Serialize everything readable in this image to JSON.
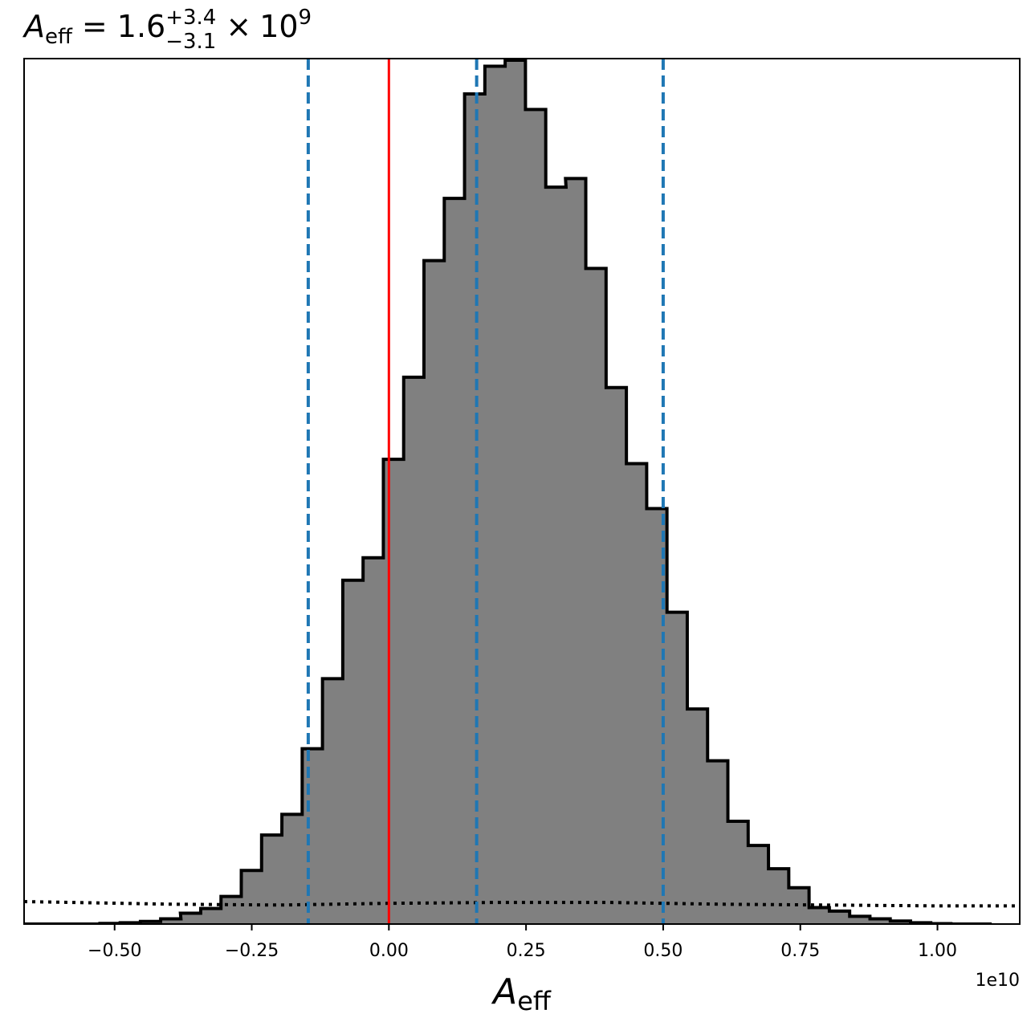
{
  "chart_data": {
    "type": "bar",
    "title": {
      "symbol": "A",
      "subscript": "eff",
      "equals": "=",
      "median": "1.6",
      "upper": "+3.4",
      "lower": "−3.1",
      "times": "×",
      "base": "10",
      "exponent": "9"
    },
    "xlabel": {
      "symbol": "A",
      "subscript": "eff"
    },
    "ylabel": "",
    "x_offset_label": "1e10",
    "xlim": [
      -0.665,
      1.15
    ],
    "ylim": [
      0,
      1.0
    ],
    "x_ticks": [
      {
        "value": -0.5,
        "label": "−0.50"
      },
      {
        "value": -0.25,
        "label": "−0.25"
      },
      {
        "value": 0.0,
        "label": "0.00"
      },
      {
        "value": 0.25,
        "label": "0.25"
      },
      {
        "value": 0.5,
        "label": "0.50"
      },
      {
        "value": 0.75,
        "label": "0.75"
      },
      {
        "value": 1.0,
        "label": "1.00"
      }
    ],
    "histogram": {
      "bin_width": 0.0369,
      "bins_left": [
        -0.675,
        -0.638,
        -0.601,
        -0.564,
        -0.527,
        -0.49,
        -0.453,
        -0.416,
        -0.38,
        -0.343,
        -0.306,
        -0.269,
        -0.232,
        -0.195,
        -0.158,
        -0.121,
        -0.084,
        -0.047,
        -0.01,
        0.027,
        0.064,
        0.101,
        0.138,
        0.175,
        0.212,
        0.249,
        0.286,
        0.322,
        0.359,
        0.396,
        0.433,
        0.47,
        0.507,
        0.544,
        0.581,
        0.618,
        0.655,
        0.692,
        0.729,
        0.766,
        0.803,
        0.84,
        0.877,
        0.914,
        0.951,
        0.988,
        1.025,
        1.062
      ],
      "values": [
        0.0,
        0.0,
        0.0,
        0.0,
        0.0007,
        0.0015,
        0.003,
        0.006,
        0.0125,
        0.018,
        0.032,
        0.062,
        0.103,
        0.127,
        0.203,
        0.284,
        0.398,
        0.424,
        0.538,
        0.633,
        0.768,
        0.84,
        0.961,
        0.993,
        1.0,
        0.943,
        0.853,
        0.863,
        0.759,
        0.621,
        0.533,
        0.481,
        0.361,
        0.249,
        0.189,
        0.119,
        0.091,
        0.064,
        0.042,
        0.019,
        0.015,
        0.009,
        0.006,
        0.0035,
        0.0015,
        0.0005,
        0.0,
        0.0
      ],
      "fill": "#808080",
      "edge": "#000000"
    },
    "vlines": [
      {
        "name": "zero",
        "x": 0.0,
        "color": "#ff0000",
        "style": "solid"
      },
      {
        "name": "lower-quantile",
        "x": -0.147,
        "color": "#1f77b4",
        "style": "dashed"
      },
      {
        "name": "median",
        "x": 0.16,
        "color": "#1f77b4",
        "style": "dashed"
      },
      {
        "name": "upper-quantile",
        "x": 0.5,
        "color": "#1f77b4",
        "style": "dashed"
      }
    ],
    "prior_line": {
      "style": "dotted",
      "color": "#000000",
      "x": [
        -0.665,
        -0.4,
        -0.2,
        0.0,
        0.2,
        0.4,
        0.6,
        0.8,
        1.0,
        1.15
      ],
      "y": [
        0.026,
        0.023,
        0.022,
        0.024,
        0.025,
        0.025,
        0.023,
        0.022,
        0.021,
        0.021
      ]
    }
  }
}
